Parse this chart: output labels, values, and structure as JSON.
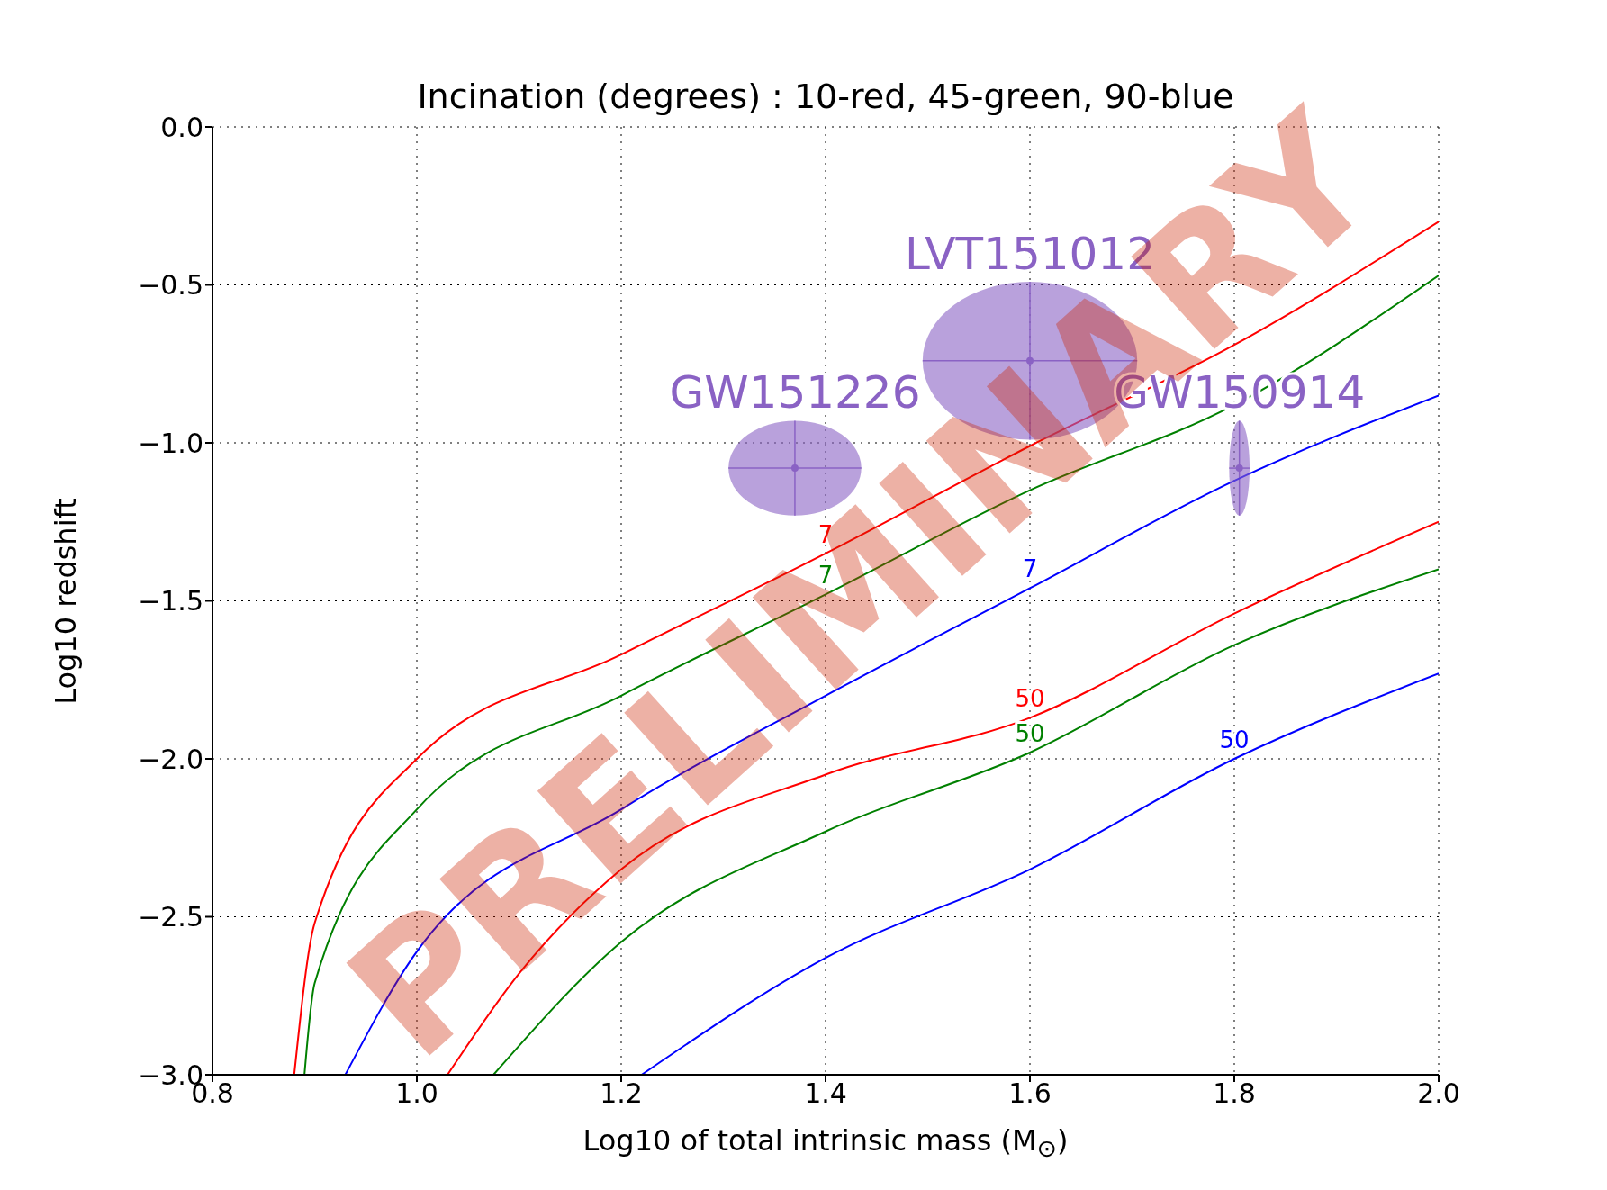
{
  "chart_data": {
    "type": "line",
    "title": "Incination (degrees) : 10-red, 45-green, 90-blue",
    "xlabel": "Log10 of total intrinsic mass (M$_{⊙}$)",
    "ylabel": "Log10 redshift",
    "xlim": [
      0.8,
      2.0
    ],
    "xticks": [
      {
        "value": 0.8,
        "label": "0.8"
      },
      {
        "value": 1.0,
        "label": "1.0"
      },
      {
        "value": 1.2,
        "label": "1.2"
      },
      {
        "value": 1.4,
        "label": "1.4"
      },
      {
        "value": 1.6,
        "label": "1.6"
      },
      {
        "value": 1.8,
        "label": "1.8"
      },
      {
        "value": 2.0,
        "label": "2.0"
      }
    ],
    "ylim": [
      -3.0,
      0.0
    ],
    "yticks": [
      {
        "value": -3.0,
        "label": "−3.0"
      },
      {
        "value": -2.5,
        "label": "−2.5"
      },
      {
        "value": -2.0,
        "label": "−2.0"
      },
      {
        "value": -1.5,
        "label": "−1.5"
      },
      {
        "value": -1.0,
        "label": "−1.0"
      },
      {
        "value": -0.5,
        "label": "−0.5"
      },
      {
        "value": 0.0,
        "label": "0.0"
      }
    ],
    "grid": true,
    "legend": false,
    "series": [
      {
        "name": "7",
        "color": "#ff0000",
        "x": [
          0.88,
          0.9,
          1.0,
          1.2,
          1.4,
          1.6,
          1.8,
          2.0
        ],
        "values": [
          -3.0,
          -2.52,
          -2.0,
          -1.67,
          -1.35,
          -1.01,
          -0.69,
          -0.3
        ]
      },
      {
        "name": "7",
        "color": "#008000",
        "x": [
          0.89,
          0.9,
          1.0,
          1.2,
          1.4,
          1.6,
          1.8,
          2.0
        ],
        "values": [
          -3.0,
          -2.71,
          -2.16,
          -1.8,
          -1.48,
          -1.15,
          -0.88,
          -0.47
        ]
      },
      {
        "name": "7",
        "color": "#0000ff",
        "x": [
          0.93,
          1.0,
          1.2,
          1.4,
          1.6,
          1.8,
          2.0
        ],
        "values": [
          -3.0,
          -2.61,
          -2.16,
          -1.8,
          -1.46,
          -1.12,
          -0.85
        ]
      },
      {
        "name": "50",
        "color": "#ff0000",
        "x": [
          1.03,
          1.1,
          1.2,
          1.4,
          1.6,
          1.8,
          2.0
        ],
        "values": [
          -3.0,
          -2.68,
          -2.35,
          -2.05,
          -1.87,
          -1.54,
          -1.25
        ]
      },
      {
        "name": "50",
        "color": "#008000",
        "x": [
          1.075,
          1.2,
          1.4,
          1.6,
          1.8,
          2.0
        ],
        "values": [
          -3.0,
          -2.58,
          -2.23,
          -1.98,
          -1.64,
          -1.4
        ]
      },
      {
        "name": "50",
        "color": "#0000ff",
        "x": [
          1.22,
          1.4,
          1.6,
          1.8,
          2.0
        ],
        "values": [
          -3.0,
          -2.63,
          -2.35,
          -2.0,
          -1.73
        ]
      },
      {
        "type": "scatter",
        "name": "GW151226",
        "color": "#8a62c4",
        "x": [
          1.37
        ],
        "values": [
          -1.08
        ],
        "xerrors": [
          0.065
        ],
        "errors": [
          0.15
        ]
      },
      {
        "type": "scatter",
        "name": "LVT151012",
        "color": "#8a62c4",
        "x": [
          1.6
        ],
        "values": [
          -0.74
        ],
        "xerrors": [
          0.105
        ],
        "errors": [
          0.25
        ]
      },
      {
        "type": "scatter",
        "name": "GW150914",
        "color": "#8a62c4",
        "x": [
          1.805
        ],
        "values": [
          -1.08
        ],
        "xerrors": [
          0.01
        ],
        "errors": [
          0.15
        ]
      }
    ],
    "annotations": [
      "PRELIMINARY"
    ]
  }
}
